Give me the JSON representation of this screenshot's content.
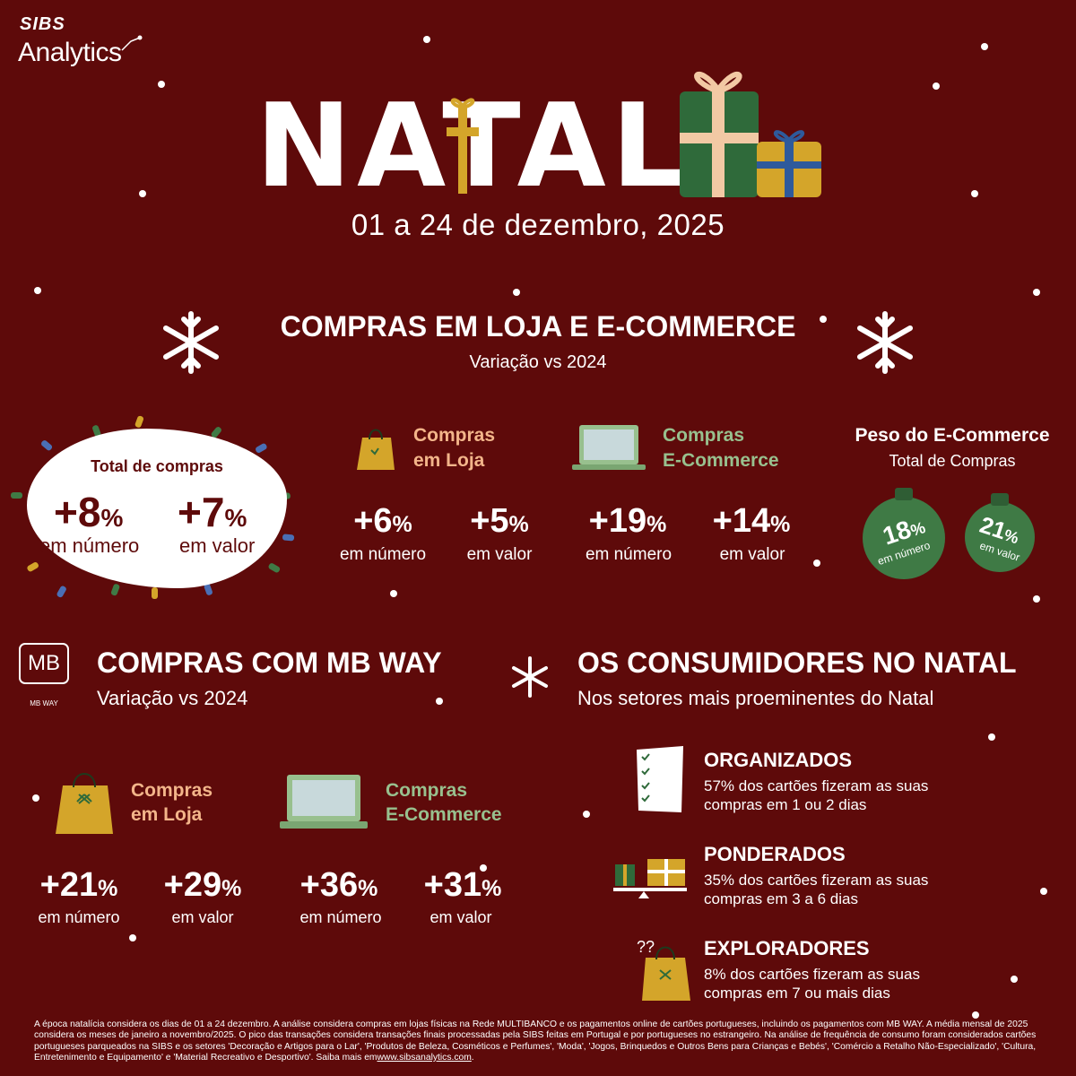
{
  "brand": {
    "sibs": "SIBS",
    "analytics": "Analytics"
  },
  "header": {
    "title": "NATAL",
    "date": "01 a 24 de dezembro, 2025"
  },
  "section1": {
    "title": "COMPRAS EM LOJA E E-COMMERCE",
    "subtitle": "Variação vs 2024",
    "total": {
      "label": "Total de compras",
      "numero_value": "+8",
      "valor_value": "+7",
      "pct_sign": "%",
      "numero_caption": "em número",
      "valor_caption": "em valor"
    },
    "loja": {
      "title_line1": "Compras",
      "title_line2": "em Loja",
      "numero_value": "+6",
      "valor_value": "+5",
      "numero_caption": "em número",
      "valor_caption": "em valor"
    },
    "ecommerce": {
      "title_line1": "Compras",
      "title_line2": "E-Commerce",
      "numero_value": "+19",
      "valor_value": "+14",
      "numero_caption": "em número",
      "valor_caption": "em valor"
    },
    "peso": {
      "title": "Peso do E-Commerce",
      "subtitle": "Total de Compras",
      "numero_value": "18",
      "numero_caption": "em número",
      "valor_value": "21",
      "valor_caption": "em valor"
    }
  },
  "mbway": {
    "logo_text": "MB",
    "logo_caption": "MB WAY",
    "title": "COMPRAS COM MB WAY",
    "subtitle": "Variação vs 2024",
    "loja": {
      "title_line1": "Compras",
      "title_line2": "em Loja",
      "numero_value": "+21",
      "valor_value": "+29",
      "numero_caption": "em número",
      "valor_caption": "em valor"
    },
    "ecommerce": {
      "title_line1": "Compras",
      "title_line2": "E-Commerce",
      "numero_value": "+36",
      "valor_value": "+31",
      "numero_caption": "em número",
      "valor_caption": "em valor"
    }
  },
  "consumidores": {
    "title": "OS CONSUMIDORES NO NATAL",
    "subtitle": "Nos setores mais proeminentes do Natal",
    "items": [
      {
        "heading": "ORGANIZADOS",
        "line1": "57% dos cartões fizeram as suas",
        "line2": "compras em 1 ou 2 dias"
      },
      {
        "heading": "PONDERADOS",
        "line1": "35% dos cartões fizeram as suas",
        "line2": "compras em 3 a 6 dias"
      },
      {
        "heading": "EXPLORADORES",
        "line1": "8% dos cartões fizeram as suas",
        "line2": "compras em 7 ou mais dias"
      }
    ]
  },
  "footnote": {
    "text": "A época natalícia considera os dias de 01 a 24 dezembro. A análise considera compras em lojas físicas na Rede MULTIBANCO e os pagamentos online de cartões portugueses, incluindo os pagamentos com MB WAY. A média mensal de 2025 considera os meses de janeiro a novembro/2025. O pico das transações considera transações finais processadas pela SIBS feitas em Portugal e por portugueses no estrangeiro. Na análise de frequência de consumo foram considerados cartões portugueses parqueados na SIBS e os setores 'Decoração e Artigos para o Lar', 'Produtos de Beleza, Cosméticos e Perfumes', 'Moda', 'Jogos, Brinquedos e Outros Bens para Crianças e Bebés', 'Comércio a Retalho Não-Especializado', 'Cultura, Entretenimento e Equipamento' e 'Material Recreativo e Desportivo'. Saiba mais em",
    "link": "www.sibsanalytics.com",
    "end": "."
  },
  "colors": {
    "background": "#5e0a0a",
    "loja_accent": "#f3b58a",
    "ecommerce_accent": "#98c08e",
    "ornament_green": "#3f7a45",
    "gold": "#d4a52a"
  },
  "icons": [
    "snowflake-icon",
    "shopping-bag-icon",
    "laptop-icon",
    "gift-icon",
    "mbway-logo-icon",
    "checklist-icon",
    "scale-icon",
    "question-bag-icon"
  ]
}
